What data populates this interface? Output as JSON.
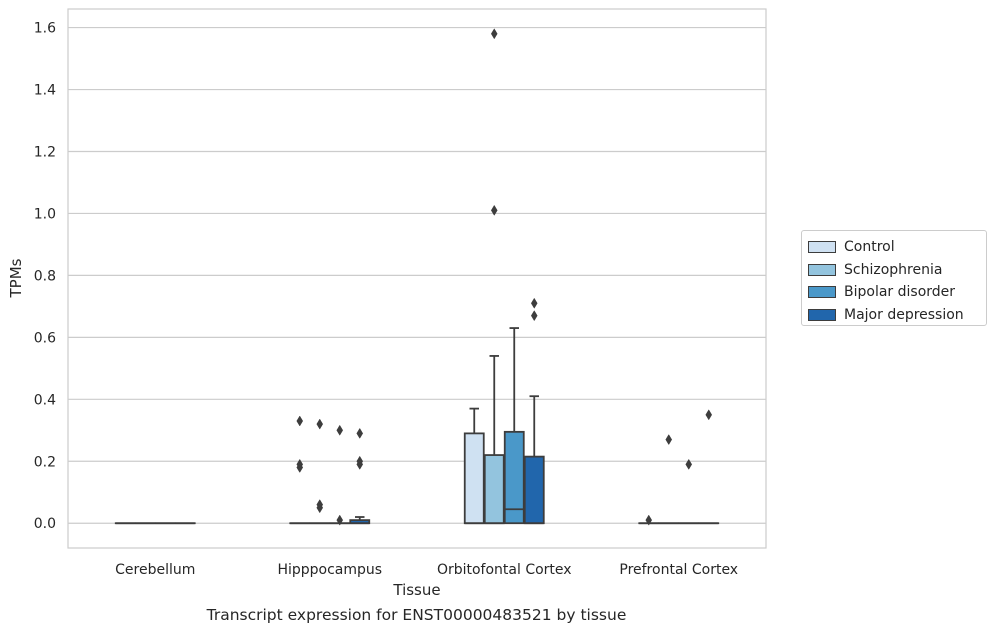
{
  "caption": "Transcript expression for ENST00000483521 by tissue",
  "chart_data": {
    "type": "box",
    "xlabel": "Tissue",
    "ylabel": "TPMs",
    "ylim": [
      -0.08,
      1.66
    ],
    "yticks": [
      0.0,
      0.2,
      0.4,
      0.6,
      0.8,
      1.0,
      1.2,
      1.4,
      1.6
    ],
    "ytick_labels": [
      "0.0",
      "0.2",
      "0.4",
      "0.6",
      "0.8",
      "1.0",
      "1.2",
      "1.4",
      "1.6"
    ],
    "grid": "horizontal",
    "legend_position": "right",
    "categories": [
      "Cerebellum",
      "Hipppocampus",
      "Orbitofontal Cortex",
      "Prefrontal Cortex"
    ],
    "series": [
      {
        "name": "Control",
        "color": "#cfe1f2",
        "boxes": [
          {
            "q1": 0,
            "median": 0,
            "q3": 0,
            "whislo": 0,
            "whishi": 0,
            "fliers": []
          },
          {
            "q1": 0,
            "median": 0,
            "q3": 0,
            "whislo": 0,
            "whishi": 0,
            "fliers": [
              0.33,
              0.19,
              0.18
            ]
          },
          {
            "q1": 0,
            "median": 0,
            "q3": 0.29,
            "whislo": 0,
            "whishi": 0.37,
            "fliers": []
          },
          {
            "q1": 0,
            "median": 0,
            "q3": 0,
            "whislo": 0,
            "whishi": 0,
            "fliers": [
              0.01
            ]
          }
        ]
      },
      {
        "name": "Schizophrenia",
        "color": "#93c4de",
        "boxes": [
          {
            "q1": 0,
            "median": 0,
            "q3": 0,
            "whislo": 0,
            "whishi": 0,
            "fliers": []
          },
          {
            "q1": 0,
            "median": 0,
            "q3": 0,
            "whislo": 0,
            "whishi": 0,
            "fliers": [
              0.32,
              0.06,
              0.05
            ]
          },
          {
            "q1": 0,
            "median": 0,
            "q3": 0.22,
            "whislo": 0,
            "whishi": 0.54,
            "fliers": [
              1.58,
              1.01
            ]
          },
          {
            "q1": 0,
            "median": 0,
            "q3": 0,
            "whislo": 0,
            "whishi": 0,
            "fliers": [
              0.27
            ]
          }
        ]
      },
      {
        "name": "Bipolar disorder",
        "color": "#4a98c9",
        "boxes": [
          {
            "q1": 0,
            "median": 0,
            "q3": 0,
            "whislo": 0,
            "whishi": 0,
            "fliers": []
          },
          {
            "q1": 0,
            "median": 0,
            "q3": 0,
            "whislo": 0,
            "whishi": 0,
            "fliers": [
              0.3,
              0.01
            ]
          },
          {
            "q1": 0,
            "median": 0.045,
            "q3": 0.295,
            "whislo": 0,
            "whishi": 0.63,
            "fliers": []
          },
          {
            "q1": 0,
            "median": 0,
            "q3": 0,
            "whislo": 0,
            "whishi": 0,
            "fliers": [
              0.19
            ]
          }
        ]
      },
      {
        "name": "Major depression",
        "color": "#2166ac",
        "boxes": [
          {
            "q1": 0,
            "median": 0,
            "q3": 0,
            "whislo": 0,
            "whishi": 0,
            "fliers": []
          },
          {
            "q1": 0,
            "median": 0,
            "q3": 0.01,
            "whislo": 0,
            "whishi": 0.02,
            "fliers": [
              0.29,
              0.2,
              0.19
            ]
          },
          {
            "q1": 0,
            "median": 0,
            "q3": 0.215,
            "whislo": 0,
            "whishi": 0.41,
            "fliers": [
              0.71,
              0.67
            ]
          },
          {
            "q1": 0,
            "median": 0,
            "q3": 0,
            "whislo": 0,
            "whishi": 0,
            "fliers": [
              0.35
            ]
          }
        ]
      }
    ]
  }
}
